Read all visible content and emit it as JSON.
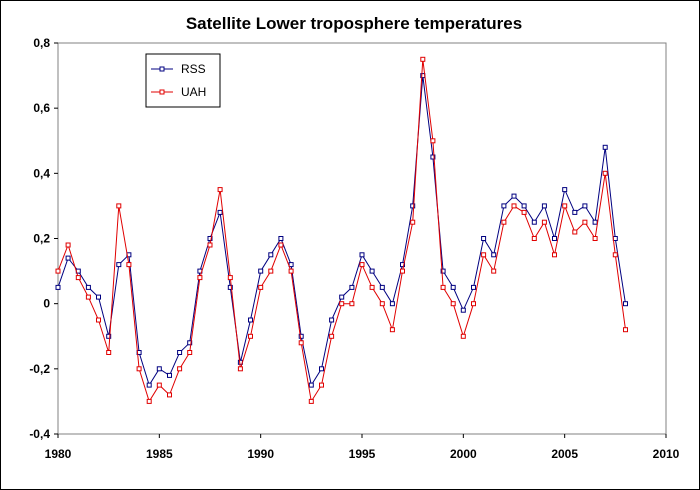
{
  "chart_data": {
    "type": "line",
    "title": "Satellite Lower troposphere temperatures",
    "xlabel": "",
    "ylabel": "",
    "xlim": [
      1980,
      2010
    ],
    "ylim": [
      -0.4,
      0.8
    ],
    "x_ticks": [
      1980,
      1985,
      1990,
      1995,
      2000,
      2005,
      2010
    ],
    "x_tick_labels": [
      "1980",
      "1985",
      "1990",
      "1995",
      "2000",
      "2005",
      "2010"
    ],
    "y_ticks": [
      -0.4,
      -0.2,
      0,
      0.2,
      0.4,
      0.6,
      0.8
    ],
    "y_tick_labels": [
      "-0,4",
      "-0,2",
      "0",
      "0,2",
      "0,4",
      "0,6",
      "0,8"
    ],
    "grid": false,
    "legend_position": "top-left",
    "series": [
      {
        "name": "RSS",
        "color": "#000080",
        "marker": "open-square",
        "x": [
          1980.0,
          1980.5,
          1981.0,
          1981.5,
          1982.0,
          1982.5,
          1983.0,
          1983.5,
          1984.0,
          1984.5,
          1985.0,
          1985.5,
          1986.0,
          1986.5,
          1987.0,
          1987.5,
          1988.0,
          1988.5,
          1989.0,
          1989.5,
          1990.0,
          1990.5,
          1991.0,
          1991.5,
          1992.0,
          1992.5,
          1993.0,
          1993.5,
          1994.0,
          1994.5,
          1995.0,
          1995.5,
          1996.0,
          1996.5,
          1997.0,
          1997.5,
          1998.0,
          1998.5,
          1999.0,
          1999.5,
          2000.0,
          2000.5,
          2001.0,
          2001.5,
          2002.0,
          2002.5,
          2003.0,
          2003.5,
          2004.0,
          2004.5,
          2005.0,
          2005.5,
          2006.0,
          2006.5,
          2007.0,
          2007.5,
          2008.0
        ],
        "y": [
          0.05,
          0.14,
          0.1,
          0.05,
          0.02,
          -0.1,
          0.12,
          0.15,
          -0.15,
          -0.25,
          -0.2,
          -0.22,
          -0.15,
          -0.12,
          0.1,
          0.2,
          0.28,
          0.05,
          -0.18,
          -0.05,
          0.1,
          0.15,
          0.2,
          0.12,
          -0.1,
          -0.25,
          -0.2,
          -0.05,
          0.02,
          0.05,
          0.15,
          0.1,
          0.05,
          0.0,
          0.12,
          0.3,
          0.7,
          0.45,
          0.1,
          0.05,
          -0.02,
          0.05,
          0.2,
          0.15,
          0.3,
          0.33,
          0.3,
          0.25,
          0.3,
          0.2,
          0.35,
          0.28,
          0.3,
          0.25,
          0.48,
          0.2,
          0.0
        ]
      },
      {
        "name": "UAH",
        "color": "#e00000",
        "marker": "open-square",
        "x": [
          1980.0,
          1980.5,
          1981.0,
          1981.5,
          1982.0,
          1982.5,
          1983.0,
          1983.5,
          1984.0,
          1984.5,
          1985.0,
          1985.5,
          1986.0,
          1986.5,
          1987.0,
          1987.5,
          1988.0,
          1988.5,
          1989.0,
          1989.5,
          1990.0,
          1990.5,
          1991.0,
          1991.5,
          1992.0,
          1992.5,
          1993.0,
          1993.5,
          1994.0,
          1994.5,
          1995.0,
          1995.5,
          1996.0,
          1996.5,
          1997.0,
          1997.5,
          1998.0,
          1998.5,
          1999.0,
          1999.5,
          2000.0,
          2000.5,
          2001.0,
          2001.5,
          2002.0,
          2002.5,
          2003.0,
          2003.5,
          2004.0,
          2004.5,
          2005.0,
          2005.5,
          2006.0,
          2006.5,
          2007.0,
          2007.5,
          2008.0
        ],
        "y": [
          0.1,
          0.18,
          0.08,
          0.02,
          -0.05,
          -0.15,
          0.3,
          0.12,
          -0.2,
          -0.3,
          -0.25,
          -0.28,
          -0.2,
          -0.15,
          0.08,
          0.18,
          0.35,
          0.08,
          -0.2,
          -0.1,
          0.05,
          0.1,
          0.18,
          0.1,
          -0.12,
          -0.3,
          -0.25,
          -0.1,
          0.0,
          0.0,
          0.12,
          0.05,
          0.0,
          -0.08,
          0.1,
          0.25,
          0.75,
          0.5,
          0.05,
          0.0,
          -0.1,
          0.0,
          0.15,
          0.1,
          0.25,
          0.3,
          0.28,
          0.2,
          0.25,
          0.15,
          0.3,
          0.22,
          0.25,
          0.2,
          0.4,
          0.15,
          -0.08
        ]
      }
    ]
  }
}
